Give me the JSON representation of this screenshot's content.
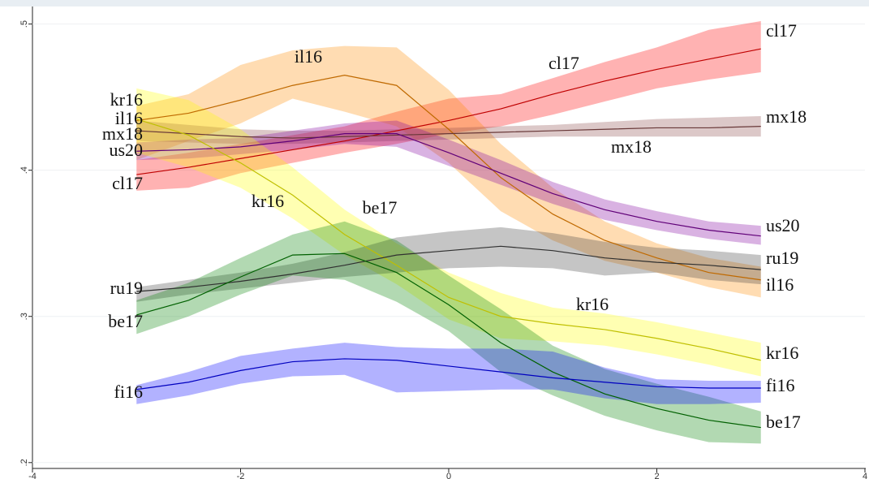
{
  "chart_data": {
    "type": "band-line",
    "x": [
      -3,
      -2.5,
      -2,
      -1.5,
      -1,
      -0.5,
      0,
      0.5,
      1,
      1.5,
      2,
      2.5,
      3
    ],
    "xlim": [
      -4,
      4
    ],
    "xticks": [
      -4,
      -2,
      0,
      2,
      4
    ],
    "ylim": [
      0.196,
      0.512
    ],
    "yticks": [
      {
        "value": 0.2,
        "label": ".2"
      },
      {
        "value": 0.3,
        "label": ".3"
      },
      {
        "value": 0.4,
        "label": ".4"
      },
      {
        "value": 0.5,
        "label": ".5"
      }
    ],
    "grid": true,
    "series": [
      {
        "name": "cl17",
        "color": "#ff0000",
        "values": [
          0.397,
          0.402,
          0.408,
          0.414,
          0.42,
          0.427,
          0.434,
          0.442,
          0.452,
          0.461,
          0.469,
          0.476,
          0.483
        ],
        "lower": [
          0.386,
          0.388,
          0.398,
          0.405,
          0.412,
          0.418,
          0.425,
          0.43,
          0.438,
          0.447,
          0.456,
          0.462,
          0.467
        ],
        "upper": [
          0.407,
          0.412,
          0.418,
          0.424,
          0.43,
          0.44,
          0.449,
          0.452,
          0.463,
          0.474,
          0.484,
          0.496,
          0.502
        ]
      },
      {
        "name": "il16",
        "color": "#ff8c00",
        "values": [
          0.434,
          0.439,
          0.448,
          0.458,
          0.465,
          0.458,
          0.428,
          0.395,
          0.37,
          0.352,
          0.34,
          0.33,
          0.325
        ],
        "lower": [
          0.407,
          0.42,
          0.432,
          0.449,
          0.44,
          0.43,
          0.405,
          0.372,
          0.352,
          0.338,
          0.33,
          0.32,
          0.313
        ],
        "upper": [
          0.444,
          0.452,
          0.472,
          0.482,
          0.485,
          0.484,
          0.455,
          0.418,
          0.388,
          0.365,
          0.35,
          0.34,
          0.334
        ]
      },
      {
        "name": "mx18",
        "color": "#8b4a4a",
        "values": [
          0.427,
          0.425,
          0.423,
          0.422,
          0.423,
          0.424,
          0.425,
          0.426,
          0.427,
          0.428,
          0.429,
          0.429,
          0.43
        ],
        "lower": [
          0.42,
          0.419,
          0.418,
          0.418,
          0.419,
          0.42,
          0.421,
          0.422,
          0.423,
          0.423,
          0.423,
          0.423,
          0.423
        ],
        "upper": [
          0.434,
          0.431,
          0.428,
          0.427,
          0.427,
          0.428,
          0.429,
          0.43,
          0.431,
          0.433,
          0.435,
          0.436,
          0.437
        ]
      },
      {
        "name": "us20",
        "color": "#8000a0",
        "values": [
          0.413,
          0.414,
          0.416,
          0.42,
          0.425,
          0.425,
          0.412,
          0.398,
          0.384,
          0.373,
          0.365,
          0.359,
          0.355
        ],
        "lower": [
          0.407,
          0.408,
          0.411,
          0.414,
          0.418,
          0.416,
          0.403,
          0.39,
          0.377,
          0.366,
          0.359,
          0.353,
          0.349
        ],
        "upper": [
          0.419,
          0.421,
          0.422,
          0.427,
          0.432,
          0.434,
          0.421,
          0.407,
          0.392,
          0.38,
          0.372,
          0.365,
          0.362
        ]
      },
      {
        "name": "kr16",
        "color": "#ffff00",
        "values": [
          0.435,
          0.424,
          0.405,
          0.383,
          0.356,
          0.335,
          0.313,
          0.3,
          0.295,
          0.291,
          0.285,
          0.278,
          0.27
        ],
        "lower": [
          0.412,
          0.402,
          0.388,
          0.367,
          0.342,
          0.322,
          0.298,
          0.285,
          0.283,
          0.28,
          0.274,
          0.267,
          0.259
        ],
        "upper": [
          0.456,
          0.448,
          0.428,
          0.402,
          0.373,
          0.35,
          0.33,
          0.316,
          0.306,
          0.302,
          0.296,
          0.289,
          0.282
        ]
      },
      {
        "name": "ru19",
        "color": "#404040",
        "values": [
          0.317,
          0.32,
          0.324,
          0.329,
          0.335,
          0.342,
          0.345,
          0.348,
          0.345,
          0.34,
          0.337,
          0.335,
          0.332
        ],
        "lower": [
          0.31,
          0.315,
          0.319,
          0.323,
          0.327,
          0.33,
          0.333,
          0.334,
          0.333,
          0.328,
          0.33,
          0.325,
          0.322
        ],
        "upper": [
          0.32,
          0.325,
          0.33,
          0.336,
          0.344,
          0.354,
          0.358,
          0.361,
          0.357,
          0.351,
          0.347,
          0.345,
          0.342
        ]
      },
      {
        "name": "be17",
        "color": "#008000",
        "values": [
          0.301,
          0.311,
          0.327,
          0.342,
          0.343,
          0.33,
          0.308,
          0.282,
          0.262,
          0.247,
          0.237,
          0.229,
          0.224
        ],
        "lower": [
          0.288,
          0.3,
          0.315,
          0.328,
          0.325,
          0.31,
          0.29,
          0.262,
          0.246,
          0.232,
          0.222,
          0.214,
          0.213
        ],
        "upper": [
          0.311,
          0.323,
          0.34,
          0.356,
          0.365,
          0.352,
          0.328,
          0.305,
          0.28,
          0.264,
          0.254,
          0.245,
          0.235
        ]
      },
      {
        "name": "fi16",
        "color": "#0000ff",
        "values": [
          0.25,
          0.255,
          0.263,
          0.269,
          0.271,
          0.27,
          0.266,
          0.262,
          0.258,
          0.255,
          0.252,
          0.251,
          0.251
        ],
        "lower": [
          0.24,
          0.246,
          0.254,
          0.259,
          0.26,
          0.248,
          0.249,
          0.25,
          0.25,
          0.244,
          0.24,
          0.24,
          0.241
        ],
        "upper": [
          0.253,
          0.262,
          0.273,
          0.278,
          0.282,
          0.279,
          0.278,
          0.278,
          0.276,
          0.265,
          0.257,
          0.256,
          0.256
        ]
      }
    ]
  }
}
